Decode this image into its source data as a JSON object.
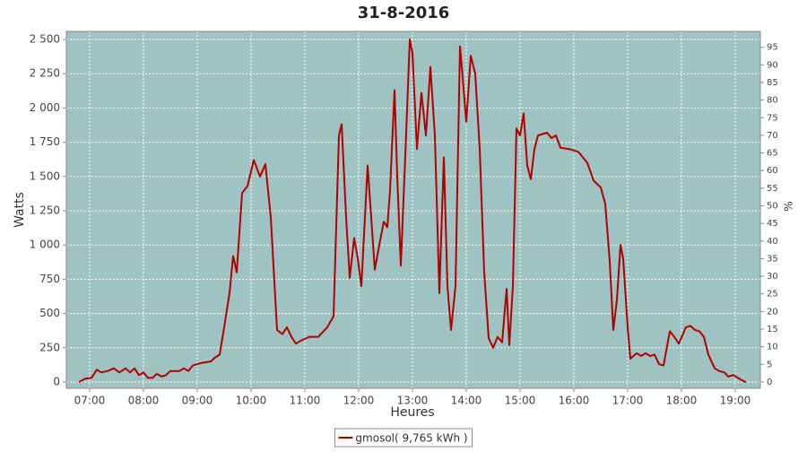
{
  "chart_data": {
    "type": "line",
    "title": "31-8-2016",
    "x_label": "Heures",
    "y_label": "Watts",
    "y2_label": "%",
    "background": "#9fc3c2",
    "grid": true,
    "legend": "bottom",
    "xlim": [
      6.567,
      19.467
    ],
    "xticks": [
      {
        "value": 7,
        "label": "07:00"
      },
      {
        "value": 8,
        "label": "08:00"
      },
      {
        "value": 9,
        "label": "09:00"
      },
      {
        "value": 10,
        "label": "10:00"
      },
      {
        "value": 11,
        "label": "11:00"
      },
      {
        "value": 12,
        "label": "12:00"
      },
      {
        "value": 13,
        "label": "13:00"
      },
      {
        "value": 14,
        "label": "14:00"
      },
      {
        "value": 15,
        "label": "15:00"
      },
      {
        "value": 16,
        "label": "16:00"
      },
      {
        "value": 17,
        "label": "17:00"
      },
      {
        "value": 18,
        "label": "18:00"
      },
      {
        "value": 19,
        "label": "19:00"
      }
    ],
    "ylim": [
      -46,
      2559
    ],
    "yticks": [
      0,
      250,
      500,
      750,
      {
        "value": 1000,
        "label": "1 000"
      },
      {
        "value": 1250,
        "label": "1 250"
      },
      {
        "value": 1500,
        "label": "1 500"
      },
      {
        "value": 1750,
        "label": "1 750"
      },
      {
        "value": 2000,
        "label": "2 000"
      },
      {
        "value": 2250,
        "label": "2 250"
      },
      {
        "value": 2500,
        "label": "2 500"
      }
    ],
    "y2lim": [
      -1.8,
      99.5
    ],
    "y2ticks": [
      0,
      5,
      10,
      15,
      20,
      25,
      30,
      35,
      40,
      45,
      50,
      55,
      60,
      65,
      70,
      75,
      80,
      85,
      90,
      95
    ],
    "x": [
      6.8,
      6.917,
      7.033,
      7.133,
      7.217,
      7.333,
      7.45,
      7.55,
      7.667,
      7.75,
      7.833,
      7.917,
      8,
      8.083,
      8.167,
      8.25,
      8.333,
      8.417,
      8.5,
      8.667,
      8.75,
      8.833,
      8.917,
      9.083,
      9.25,
      9.333,
      9.417,
      9.5,
      9.6,
      9.667,
      9.733,
      9.833,
      9.933,
      10.05,
      10.167,
      10.267,
      10.367,
      10.483,
      10.583,
      10.667,
      10.75,
      10.833,
      10.917,
      11.083,
      11.25,
      11.417,
      11.533,
      11.633,
      11.683,
      11.767,
      11.833,
      11.917,
      11.983,
      12.05,
      12.167,
      12.3,
      12.383,
      12.467,
      12.533,
      12.583,
      12.667,
      12.717,
      12.783,
      12.867,
      12.95,
      13,
      13.083,
      13.167,
      13.25,
      13.333,
      13.417,
      13.5,
      13.583,
      13.65,
      13.717,
      13.8,
      13.883,
      13.917,
      14,
      14.083,
      14.167,
      14.25,
      14.333,
      14.417,
      14.5,
      14.583,
      14.667,
      14.75,
      14.8,
      14.867,
      14.933,
      15,
      15.067,
      15.133,
      15.2,
      15.267,
      15.333,
      15.5,
      15.583,
      15.667,
      15.75,
      15.917,
      16.083,
      16.25,
      16.367,
      16.5,
      16.583,
      16.667,
      16.733,
      16.8,
      16.867,
      16.917,
      17,
      17.05,
      17.167,
      17.25,
      17.333,
      17.417,
      17.5,
      17.583,
      17.667,
      17.783,
      17.867,
      17.95,
      18.083,
      18.167,
      18.25,
      18.333,
      18.417,
      18.5,
      18.617,
      18.7,
      18.8,
      18.867,
      18.967,
      19.05,
      19.133,
      19.2
    ],
    "series": [
      {
        "name": "gmosol( 9,765 kWh )",
        "color": "#b00000",
        "values": [
          0,
          25,
          30,
          90,
          70,
          80,
          100,
          70,
          100,
          70,
          100,
          50,
          70,
          30,
          30,
          60,
          40,
          50,
          80,
          80,
          100,
          80,
          120,
          140,
          150,
          180,
          200,
          400,
          650,
          920,
          800,
          1380,
          1430,
          1620,
          1500,
          1590,
          1200,
          380,
          350,
          400,
          330,
          280,
          300,
          330,
          330,
          400,
          480,
          1800,
          1880,
          1200,
          760,
          1050,
          900,
          700,
          1580,
          820,
          1000,
          1170,
          1130,
          1400,
          2130,
          1500,
          850,
          1650,
          2500,
          2400,
          1700,
          2110,
          1800,
          2300,
          1800,
          650,
          1640,
          700,
          380,
          700,
          2450,
          2300,
          1900,
          2380,
          2250,
          1700,
          800,
          320,
          250,
          330,
          290,
          680,
          270,
          700,
          1850,
          1800,
          1960,
          1580,
          1480,
          1700,
          1800,
          1820,
          1780,
          1800,
          1710,
          1700,
          1680,
          1600,
          1470,
          1420,
          1300,
          880,
          380,
          600,
          1000,
          900,
          400,
          170,
          210,
          190,
          210,
          190,
          200,
          130,
          120,
          370,
          330,
          280,
          400,
          410,
          380,
          370,
          330,
          200,
          100,
          80,
          70,
          40,
          50,
          30,
          10,
          0
        ]
      }
    ]
  }
}
